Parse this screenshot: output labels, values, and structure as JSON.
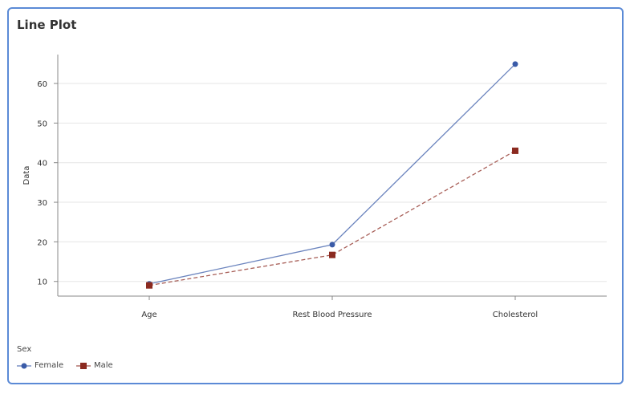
{
  "title": "Line Plot",
  "chart_data": {
    "type": "line",
    "title": "Line Plot",
    "xlabel": "",
    "ylabel": "Data",
    "categories": [
      "Age",
      "Rest Blood Pressure",
      "Cholesterol"
    ],
    "ylim": [
      6.3,
      67.3
    ],
    "yticks": [
      10,
      20,
      30,
      40,
      50,
      60
    ],
    "grid": true,
    "legend_title": "Sex",
    "legend_position": "bottom-left",
    "series": [
      {
        "name": "Female",
        "values": [
          9.4,
          19.3,
          64.9
        ],
        "color": "#3a5ba8",
        "marker": "circle",
        "dash": "solid"
      },
      {
        "name": "Male",
        "values": [
          9.0,
          16.7,
          43.0
        ],
        "color": "#8b2a20",
        "marker": "square",
        "dash": "dashed"
      }
    ]
  }
}
